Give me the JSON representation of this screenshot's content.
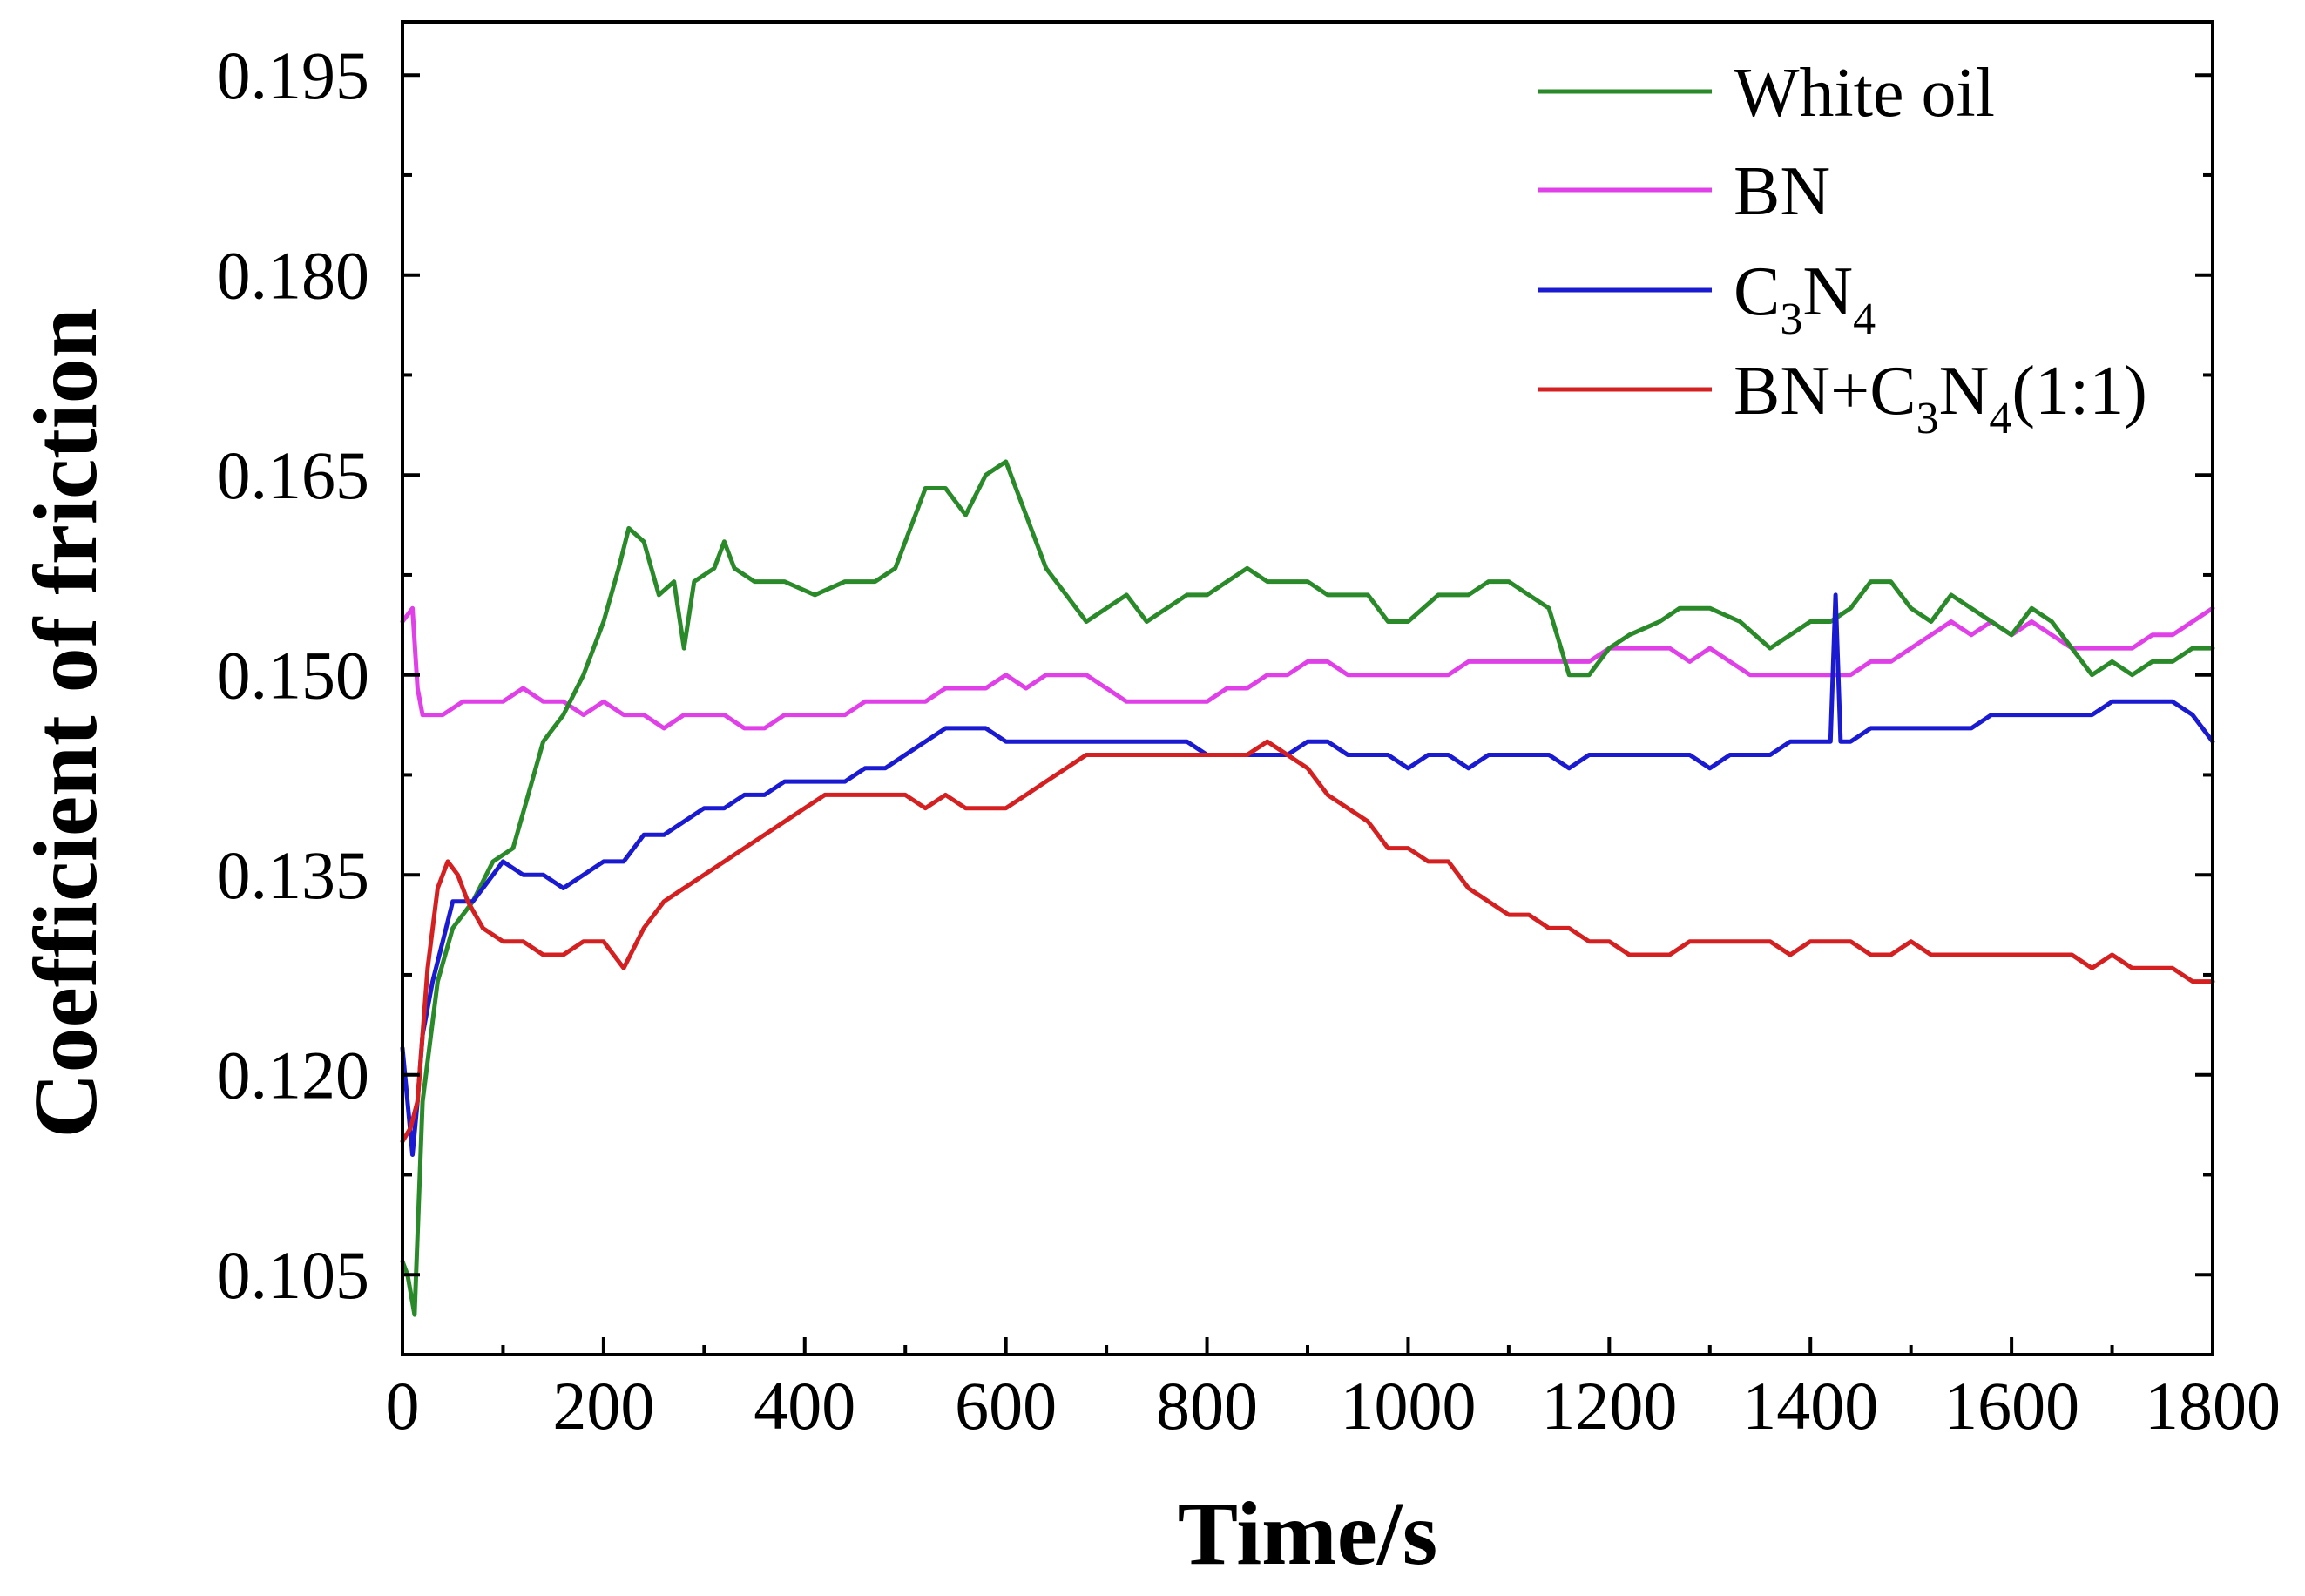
{
  "chart_data": {
    "type": "line",
    "title": "",
    "xlabel": "Time/s",
    "ylabel": "Coefficient of friction",
    "xlim": [
      0,
      1800
    ],
    "ylim": [
      0.099,
      0.199
    ],
    "x_ticks": [
      0,
      200,
      400,
      600,
      800,
      1000,
      1200,
      1400,
      1600,
      1800
    ],
    "y_ticks": [
      0.105,
      0.12,
      0.135,
      0.15,
      0.165,
      0.18,
      0.195
    ],
    "y_tick_labels": [
      "0.105",
      "0.120",
      "0.135",
      "0.150",
      "0.165",
      "0.180",
      "0.195"
    ],
    "grid": false,
    "legend_position": "top-right",
    "series": [
      {
        "name": "White oil",
        "label_main": "White oil",
        "color": "#2a8a2a",
        "x": [
          0,
          5,
          12,
          20,
          35,
          50,
          70,
          90,
          110,
          125,
          140,
          160,
          180,
          200,
          215,
          225,
          240,
          255,
          270,
          280,
          290,
          310,
          320,
          330,
          350,
          380,
          410,
          440,
          470,
          490,
          500,
          510,
          520,
          540,
          560,
          580,
          600,
          620,
          640,
          660,
          680,
          700,
          720,
          740,
          760,
          780,
          800,
          820,
          840,
          860,
          880,
          900,
          920,
          940,
          960,
          980,
          1000,
          1030,
          1060,
          1080,
          1100,
          1120,
          1140,
          1160,
          1180,
          1200,
          1220,
          1250,
          1270,
          1300,
          1330,
          1360,
          1380,
          1400,
          1420,
          1440,
          1460,
          1480,
          1500,
          1520,
          1540,
          1560,
          1580,
          1600,
          1620,
          1640,
          1660,
          1680,
          1700,
          1720,
          1740,
          1760,
          1780,
          1800
        ],
        "values": [
          0.106,
          0.105,
          0.102,
          0.118,
          0.127,
          0.131,
          0.133,
          0.136,
          0.137,
          0.141,
          0.145,
          0.147,
          0.15,
          0.154,
          0.158,
          0.161,
          0.16,
          0.156,
          0.157,
          0.152,
          0.157,
          0.158,
          0.16,
          0.158,
          0.157,
          0.157,
          0.156,
          0.157,
          0.157,
          0.158,
          0.16,
          0.162,
          0.164,
          0.164,
          0.162,
          0.165,
          0.166,
          0.162,
          0.158,
          0.156,
          0.154,
          0.155,
          0.156,
          0.154,
          0.155,
          0.156,
          0.156,
          0.157,
          0.158,
          0.157,
          0.157,
          0.157,
          0.156,
          0.156,
          0.156,
          0.154,
          0.154,
          0.156,
          0.156,
          0.157,
          0.157,
          0.156,
          0.155,
          0.15,
          0.15,
          0.152,
          0.153,
          0.154,
          0.155,
          0.155,
          0.154,
          0.152,
          0.153,
          0.154,
          0.154,
          0.155,
          0.157,
          0.157,
          0.155,
          0.154,
          0.156,
          0.155,
          0.154,
          0.153,
          0.155,
          0.154,
          0.152,
          0.15,
          0.151,
          0.15,
          0.151,
          0.151,
          0.152,
          0.152
        ]
      },
      {
        "name": "BN",
        "label_main": "BN",
        "color": "#e040e8",
        "x": [
          0,
          10,
          15,
          20,
          40,
          60,
          80,
          100,
          120,
          140,
          160,
          180,
          200,
          220,
          240,
          260,
          280,
          300,
          320,
          340,
          360,
          380,
          400,
          420,
          440,
          460,
          480,
          500,
          520,
          540,
          560,
          580,
          600,
          620,
          640,
          660,
          680,
          700,
          720,
          740,
          760,
          780,
          800,
          820,
          840,
          860,
          880,
          900,
          920,
          940,
          960,
          980,
          1000,
          1020,
          1040,
          1060,
          1080,
          1100,
          1120,
          1140,
          1160,
          1180,
          1200,
          1220,
          1240,
          1260,
          1280,
          1300,
          1320,
          1340,
          1360,
          1380,
          1400,
          1420,
          1440,
          1460,
          1480,
          1500,
          1520,
          1540,
          1560,
          1580,
          1600,
          1620,
          1640,
          1660,
          1680,
          1700,
          1720,
          1740,
          1760,
          1780,
          1800
        ],
        "values": [
          0.154,
          0.155,
          0.149,
          0.147,
          0.147,
          0.148,
          0.148,
          0.148,
          0.149,
          0.148,
          0.148,
          0.147,
          0.148,
          0.147,
          0.147,
          0.146,
          0.147,
          0.147,
          0.147,
          0.146,
          0.146,
          0.147,
          0.147,
          0.147,
          0.147,
          0.148,
          0.148,
          0.148,
          0.148,
          0.149,
          0.149,
          0.149,
          0.15,
          0.149,
          0.15,
          0.15,
          0.15,
          0.149,
          0.148,
          0.148,
          0.148,
          0.148,
          0.148,
          0.149,
          0.149,
          0.15,
          0.15,
          0.151,
          0.151,
          0.15,
          0.15,
          0.15,
          0.15,
          0.15,
          0.15,
          0.151,
          0.151,
          0.151,
          0.151,
          0.151,
          0.151,
          0.151,
          0.152,
          0.152,
          0.152,
          0.152,
          0.151,
          0.152,
          0.151,
          0.15,
          0.15,
          0.15,
          0.15,
          0.15,
          0.15,
          0.151,
          0.151,
          0.152,
          0.153,
          0.154,
          0.153,
          0.154,
          0.153,
          0.154,
          0.153,
          0.152,
          0.152,
          0.152,
          0.152,
          0.153,
          0.153,
          0.154,
          0.155
        ]
      },
      {
        "name": "C3N4",
        "label_main": "C",
        "label_sub1": "3",
        "label_mid": "N",
        "label_sub2": "4",
        "color": "#1a1ad0",
        "x": [
          0,
          5,
          10,
          15,
          20,
          30,
          40,
          50,
          60,
          70,
          80,
          100,
          120,
          140,
          160,
          180,
          200,
          220,
          240,
          260,
          280,
          300,
          320,
          340,
          360,
          380,
          400,
          420,
          440,
          460,
          480,
          500,
          520,
          540,
          560,
          580,
          600,
          620,
          640,
          660,
          680,
          700,
          720,
          740,
          760,
          780,
          800,
          820,
          840,
          860,
          880,
          900,
          920,
          940,
          960,
          980,
          1000,
          1020,
          1040,
          1060,
          1080,
          1100,
          1120,
          1140,
          1160,
          1180,
          1200,
          1220,
          1240,
          1260,
          1280,
          1300,
          1320,
          1340,
          1360,
          1380,
          1400,
          1420,
          1425,
          1430,
          1440,
          1460,
          1480,
          1500,
          1520,
          1540,
          1560,
          1580,
          1600,
          1620,
          1640,
          1660,
          1680,
          1700,
          1720,
          1740,
          1760,
          1780,
          1800
        ],
        "values": [
          0.122,
          0.118,
          0.114,
          0.118,
          0.123,
          0.127,
          0.13,
          0.133,
          0.133,
          0.133,
          0.134,
          0.136,
          0.135,
          0.135,
          0.134,
          0.135,
          0.136,
          0.136,
          0.138,
          0.138,
          0.139,
          0.14,
          0.14,
          0.141,
          0.141,
          0.142,
          0.142,
          0.142,
          0.142,
          0.143,
          0.143,
          0.144,
          0.145,
          0.146,
          0.146,
          0.146,
          0.145,
          0.145,
          0.145,
          0.145,
          0.145,
          0.145,
          0.145,
          0.145,
          0.145,
          0.145,
          0.144,
          0.144,
          0.144,
          0.144,
          0.144,
          0.145,
          0.145,
          0.144,
          0.144,
          0.144,
          0.143,
          0.144,
          0.144,
          0.143,
          0.144,
          0.144,
          0.144,
          0.144,
          0.143,
          0.144,
          0.144,
          0.144,
          0.144,
          0.144,
          0.144,
          0.143,
          0.144,
          0.144,
          0.144,
          0.145,
          0.145,
          0.145,
          0.156,
          0.145,
          0.145,
          0.146,
          0.146,
          0.146,
          0.146,
          0.146,
          0.146,
          0.147,
          0.147,
          0.147,
          0.147,
          0.147,
          0.147,
          0.148,
          0.148,
          0.148,
          0.148,
          0.147,
          0.145
        ]
      },
      {
        "name": "BN+C3N4(1:1)",
        "label_main": "BN+C",
        "label_sub1": "3",
        "label_mid": "N",
        "label_sub2": "4",
        "label_tail": "(1:1)",
        "color": "#d42020",
        "x": [
          0,
          8,
          15,
          25,
          35,
          45,
          55,
          65,
          80,
          100,
          120,
          140,
          160,
          180,
          200,
          210,
          220,
          240,
          260,
          280,
          300,
          320,
          340,
          360,
          380,
          400,
          420,
          440,
          460,
          480,
          500,
          520,
          540,
          560,
          580,
          600,
          620,
          640,
          660,
          680,
          700,
          720,
          740,
          760,
          780,
          800,
          820,
          840,
          860,
          880,
          900,
          920,
          940,
          960,
          980,
          1000,
          1020,
          1040,
          1060,
          1080,
          1100,
          1120,
          1140,
          1160,
          1180,
          1200,
          1220,
          1240,
          1260,
          1280,
          1300,
          1320,
          1340,
          1360,
          1380,
          1400,
          1420,
          1440,
          1460,
          1480,
          1500,
          1520,
          1540,
          1560,
          1580,
          1600,
          1620,
          1640,
          1660,
          1680,
          1700,
          1720,
          1740,
          1760,
          1780,
          1800
        ],
        "values": [
          0.115,
          0.116,
          0.118,
          0.128,
          0.134,
          0.136,
          0.135,
          0.133,
          0.131,
          0.13,
          0.13,
          0.129,
          0.129,
          0.13,
          0.13,
          0.129,
          0.128,
          0.131,
          0.133,
          0.134,
          0.135,
          0.136,
          0.137,
          0.138,
          0.139,
          0.14,
          0.141,
          0.141,
          0.141,
          0.141,
          0.141,
          0.14,
          0.141,
          0.14,
          0.14,
          0.14,
          0.141,
          0.142,
          0.143,
          0.144,
          0.144,
          0.144,
          0.144,
          0.144,
          0.144,
          0.144,
          0.144,
          0.144,
          0.145,
          0.144,
          0.143,
          0.141,
          0.14,
          0.139,
          0.137,
          0.137,
          0.136,
          0.136,
          0.134,
          0.133,
          0.132,
          0.132,
          0.131,
          0.131,
          0.13,
          0.13,
          0.129,
          0.129,
          0.129,
          0.13,
          0.13,
          0.13,
          0.13,
          0.13,
          0.129,
          0.13,
          0.13,
          0.13,
          0.129,
          0.129,
          0.13,
          0.129,
          0.129,
          0.129,
          0.129,
          0.129,
          0.129,
          0.129,
          0.129,
          0.128,
          0.129,
          0.128,
          0.128,
          0.128,
          0.127,
          0.127
        ]
      }
    ]
  }
}
